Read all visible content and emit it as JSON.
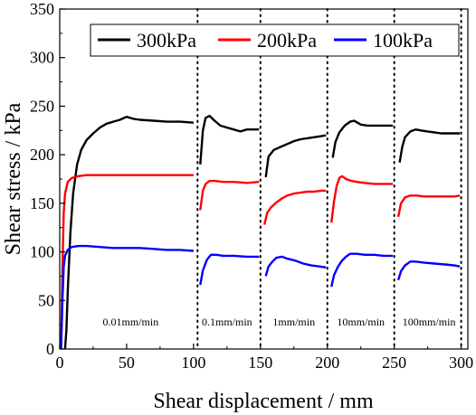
{
  "chart_data": {
    "type": "line",
    "xlabel": "Shear displacement / mm",
    "ylabel": "Shear stress / kPa",
    "xlim": [
      0,
      305
    ],
    "ylim": [
      0,
      350
    ],
    "x_ticks": [
      0,
      50,
      100,
      150,
      200,
      250,
      300
    ],
    "y_ticks": [
      0,
      50,
      100,
      150,
      200,
      250,
      300,
      350
    ],
    "grid": false,
    "legend_position": "top",
    "stage_boundaries": [
      103,
      150,
      200,
      250,
      300
    ],
    "annotations": [
      {
        "text": "0.01mm/min",
        "x": 53,
        "y": 28
      },
      {
        "text": "0.1mm/min",
        "x": 125,
        "y": 28
      },
      {
        "text": "1mm/min",
        "x": 175,
        "y": 28
      },
      {
        "text": "10mm/min",
        "x": 225,
        "y": 28
      },
      {
        "text": "100mm/min",
        "x": 276,
        "y": 28
      }
    ],
    "series": [
      {
        "name": "300kPa",
        "color": "#000000",
        "segments": [
          [
            [
              4,
              0
            ],
            [
              5,
              20
            ],
            [
              6,
              60
            ],
            [
              8,
              120
            ],
            [
              10,
              160
            ],
            [
              13,
              190
            ],
            [
              16,
              205
            ],
            [
              20,
              215
            ],
            [
              25,
              222
            ],
            [
              30,
              228
            ],
            [
              35,
              232
            ],
            [
              40,
              234
            ],
            [
              45,
              236
            ],
            [
              50,
              239
            ],
            [
              55,
              237
            ],
            [
              60,
              236
            ],
            [
              70,
              235
            ],
            [
              80,
              234
            ],
            [
              90,
              234
            ],
            [
              100,
              233
            ]
          ],
          [
            [
              105,
              190
            ],
            [
              107,
              225
            ],
            [
              109,
              238
            ],
            [
              112,
              240
            ],
            [
              115,
              236
            ],
            [
              120,
              230
            ],
            [
              125,
              228
            ],
            [
              130,
              226
            ],
            [
              135,
              224
            ],
            [
              140,
              226
            ],
            [
              145,
              226
            ],
            [
              149,
              226
            ]
          ],
          [
            [
              154,
              177
            ],
            [
              156,
              198
            ],
            [
              160,
              205
            ],
            [
              165,
              208
            ],
            [
              170,
              211
            ],
            [
              175,
              214
            ],
            [
              180,
              216
            ],
            [
              185,
              217
            ],
            [
              190,
              218
            ],
            [
              195,
              219
            ],
            [
              199,
              220
            ]
          ],
          [
            [
              204,
              197
            ],
            [
              206,
              213
            ],
            [
              209,
              223
            ],
            [
              213,
              230
            ],
            [
              217,
              234
            ],
            [
              220,
              235
            ],
            [
              225,
              231
            ],
            [
              230,
              230
            ],
            [
              235,
              230
            ],
            [
              240,
              230
            ],
            [
              245,
              230
            ],
            [
              249,
              230
            ]
          ],
          [
            [
              254,
              192
            ],
            [
              256,
              208
            ],
            [
              258,
              218
            ],
            [
              262,
              224
            ],
            [
              266,
              226
            ],
            [
              270,
              225
            ],
            [
              275,
              224
            ],
            [
              280,
              223
            ],
            [
              285,
              222
            ],
            [
              290,
              222
            ],
            [
              295,
              222
            ],
            [
              299,
              222
            ]
          ]
        ]
      },
      {
        "name": "200kPa",
        "color": "#ff0000",
        "segments": [
          [
            [
              1,
              0
            ],
            [
              2,
              80
            ],
            [
              3,
              140
            ],
            [
              4,
              160
            ],
            [
              6,
              172
            ],
            [
              9,
              176
            ],
            [
              14,
              178
            ],
            [
              20,
              179
            ],
            [
              30,
              179
            ],
            [
              40,
              179
            ],
            [
              50,
              179
            ],
            [
              60,
              179
            ],
            [
              70,
              179
            ],
            [
              80,
              179
            ],
            [
              90,
              179
            ],
            [
              100,
              179
            ]
          ],
          [
            [
              105,
              143
            ],
            [
              107,
              163
            ],
            [
              109,
              170
            ],
            [
              112,
              173
            ],
            [
              116,
              173
            ],
            [
              122,
              172
            ],
            [
              130,
              172
            ],
            [
              140,
              171
            ],
            [
              149,
              172
            ]
          ],
          [
            [
              153,
              128
            ],
            [
              155,
              140
            ],
            [
              158,
              146
            ],
            [
              162,
              151
            ],
            [
              166,
              155
            ],
            [
              170,
              158
            ],
            [
              175,
              160
            ],
            [
              180,
              161
            ],
            [
              185,
              162
            ],
            [
              190,
              162
            ],
            [
              195,
              163
            ],
            [
              199,
              163
            ]
          ],
          [
            [
              203,
              130
            ],
            [
              205,
              152
            ],
            [
              207,
              168
            ],
            [
              209,
              176
            ],
            [
              211,
              178
            ],
            [
              214,
              175
            ],
            [
              218,
              173
            ],
            [
              222,
              172
            ],
            [
              228,
              171
            ],
            [
              235,
              170
            ],
            [
              242,
              170
            ],
            [
              249,
              170
            ]
          ],
          [
            [
              253,
              136
            ],
            [
              255,
              150
            ],
            [
              258,
              156
            ],
            [
              262,
              158
            ],
            [
              267,
              158
            ],
            [
              272,
              157
            ],
            [
              280,
              157
            ],
            [
              288,
              157
            ],
            [
              295,
              157
            ],
            [
              299,
              158
            ]
          ]
        ]
      },
      {
        "name": "100kPa",
        "color": "#0000ff",
        "segments": [
          [
            [
              1,
              0
            ],
            [
              2,
              50
            ],
            [
              3,
              85
            ],
            [
              4,
              96
            ],
            [
              6,
              102
            ],
            [
              9,
              105
            ],
            [
              14,
              106
            ],
            [
              20,
              106
            ],
            [
              30,
              105
            ],
            [
              40,
              104
            ],
            [
              50,
              104
            ],
            [
              60,
              104
            ],
            [
              70,
              103
            ],
            [
              80,
              102
            ],
            [
              90,
              102
            ],
            [
              100,
              101
            ]
          ],
          [
            [
              105,
              66
            ],
            [
              107,
              81
            ],
            [
              110,
              92
            ],
            [
              113,
              97
            ],
            [
              117,
              97
            ],
            [
              122,
              96
            ],
            [
              130,
              96
            ],
            [
              140,
              95
            ],
            [
              149,
              95
            ]
          ],
          [
            [
              154,
              75
            ],
            [
              156,
              85
            ],
            [
              159,
              90
            ],
            [
              162,
              94
            ],
            [
              166,
              95
            ],
            [
              170,
              93
            ],
            [
              176,
              91
            ],
            [
              182,
              88
            ],
            [
              188,
              86
            ],
            [
              194,
              85
            ],
            [
              199,
              84
            ]
          ],
          [
            [
              203,
              64
            ],
            [
              205,
              76
            ],
            [
              208,
              85
            ],
            [
              211,
              91
            ],
            [
              214,
              95
            ],
            [
              217,
              98
            ],
            [
              222,
              98
            ],
            [
              228,
              97
            ],
            [
              235,
              97
            ],
            [
              242,
              96
            ],
            [
              249,
              96
            ]
          ],
          [
            [
              253,
              71
            ],
            [
              255,
              80
            ],
            [
              258,
              86
            ],
            [
              262,
              90
            ],
            [
              266,
              90
            ],
            [
              272,
              89
            ],
            [
              280,
              88
            ],
            [
              288,
              87
            ],
            [
              295,
              86
            ],
            [
              299,
              85
            ]
          ]
        ]
      }
    ]
  }
}
